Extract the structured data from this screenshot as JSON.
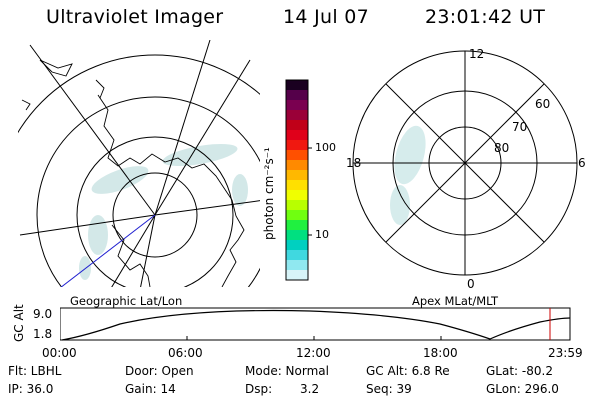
{
  "header": {
    "instrument": "Ultraviolet Imager",
    "date": "14 Jul 07",
    "time": "23:01:42 UT"
  },
  "colorbar": {
    "unit_label": "photon cm⁻²s⁻¹",
    "ticks": [
      "100",
      "10"
    ],
    "colors": [
      "#1a0020",
      "#55004a",
      "#7a0050",
      "#9a0038",
      "#c00018",
      "#e0001a",
      "#f01810",
      "#ff5000",
      "#ff8a00",
      "#ffb800",
      "#ffe000",
      "#f0ff00",
      "#b8ff00",
      "#70ff10",
      "#20f040",
      "#00e080",
      "#00d0c0",
      "#40d8e0",
      "#90e8f0",
      "#d8f4f8"
    ]
  },
  "left_map": {
    "label": "Geographic Lat/Lon"
  },
  "right_map": {
    "label": "Apex MLat/MLT",
    "mlt_labels": {
      "top": "12",
      "left": "18",
      "right": "6",
      "bottom": "0"
    },
    "lat_labels": [
      "60",
      "70",
      "80"
    ]
  },
  "altitude_plot": {
    "ylabel": "GC Alt",
    "yticks": [
      "9.0",
      "1.8"
    ],
    "xticks": [
      "00:00",
      "06:00",
      "12:00",
      "18:00",
      "23:59"
    ],
    "marker_color": "#cc0000"
  },
  "status": {
    "flt": "Flt: LBHL",
    "ip": "IP: 36.0",
    "door": "Door: Open",
    "gain": "Gain: 14",
    "mode": "Mode: Normal",
    "dsp": "Dsp:",
    "dsp_value": "3.2",
    "gc_alt": "GC Alt: 6.8 Re",
    "seq": "Seq: 39",
    "glat": "GLat: -80.2",
    "glon": "GLon: 296.0"
  }
}
